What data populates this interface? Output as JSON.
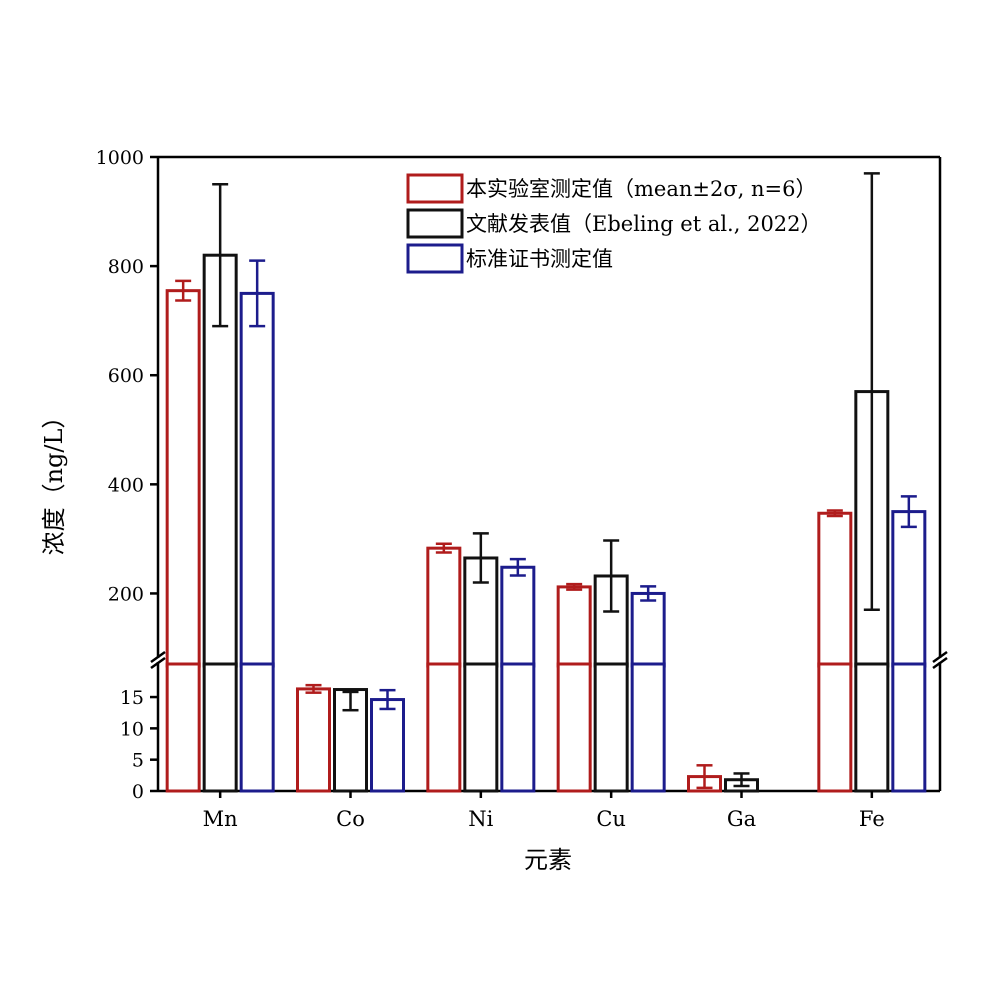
{
  "chart_data": {
    "type": "bar",
    "title": "",
    "xlabel": "元素",
    "ylabel": "浓度（ng/L）",
    "categories": [
      "Mn",
      "Co",
      "Ni",
      "Cu",
      "Ga",
      "Fe"
    ],
    "series": [
      {
        "name": "本实验室测定值（mean±2σ, n=6）",
        "color": "#b01c1c",
        "values": [
          755,
          16.3,
          283,
          212,
          2.3,
          347
        ],
        "errors": [
          18,
          0.6,
          8,
          5,
          1.8,
          5
        ]
      },
      {
        "name": "文献发表值（Ebeling et al., 2022）",
        "color": "#111111",
        "values": [
          820,
          16.2,
          265,
          232,
          1.8,
          570
        ],
        "errors": [
          130,
          3.3,
          45,
          65,
          1.0,
          400
        ]
      },
      {
        "name": "标准证书测定值",
        "color": "#1c1c8c",
        "values": [
          750,
          14.6,
          248,
          200,
          null,
          350
        ],
        "errors": [
          60,
          1.5,
          15,
          13,
          null,
          28
        ]
      }
    ],
    "axis_break": true,
    "y_lower": {
      "ylim": [
        0,
        19
      ],
      "ticks": [
        0,
        5,
        10,
        15
      ]
    },
    "y_upper": {
      "ylim": [
        100,
        1000
      ],
      "ticks": [
        200,
        400,
        600,
        800,
        1000
      ]
    },
    "legend_position": "top-right",
    "grid": false
  }
}
